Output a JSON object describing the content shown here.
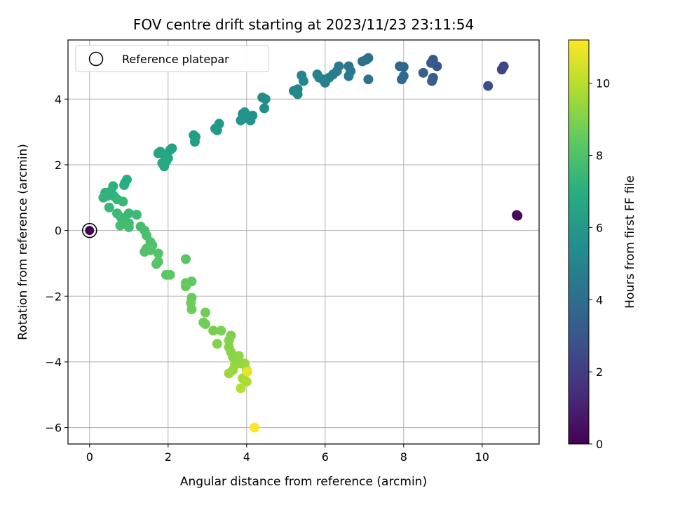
{
  "chart_data": {
    "type": "scatter",
    "title": "FOV centre drift starting at 2023/11/23 23:11:54",
    "xlabel": "Angular distance from reference (arcmin)",
    "ylabel": "Rotation from reference (arcmin)",
    "xlim": [
      -0.55,
      11.45
    ],
    "ylim": [
      -6.5,
      5.8
    ],
    "xticks": [
      0,
      2,
      4,
      6,
      8,
      10
    ],
    "yticks": [
      -6,
      -4,
      -2,
      0,
      2,
      4
    ],
    "grid": true,
    "legend": {
      "placement": "top-left",
      "entries": [
        "Reference platepar"
      ]
    },
    "reference_point": {
      "x": 0,
      "y": 0
    },
    "colorbar": {
      "label": "Hours from first FF file",
      "colormap": "viridis",
      "range": [
        0,
        11.2
      ],
      "ticks": [
        0,
        2,
        4,
        6,
        8,
        10
      ]
    },
    "points": [
      {
        "x": 10.9,
        "y": 0.45,
        "c": 0.1
      },
      {
        "x": 10.88,
        "y": 0.47,
        "c": 0.3
      },
      {
        "x": 10.5,
        "y": 4.9,
        "c": 2.2
      },
      {
        "x": 10.55,
        "y": 5.0,
        "c": 2.4
      },
      {
        "x": 10.15,
        "y": 4.4,
        "c": 2.6
      },
      {
        "x": 8.85,
        "y": 5.0,
        "c": 2.9
      },
      {
        "x": 8.75,
        "y": 5.2,
        "c": 3.0
      },
      {
        "x": 8.7,
        "y": 5.1,
        "c": 3.1
      },
      {
        "x": 8.75,
        "y": 4.65,
        "c": 3.2
      },
      {
        "x": 8.72,
        "y": 4.55,
        "c": 3.3
      },
      {
        "x": 8.5,
        "y": 4.8,
        "c": 3.4
      },
      {
        "x": 8.0,
        "y": 4.98,
        "c": 3.6
      },
      {
        "x": 7.9,
        "y": 5.0,
        "c": 3.7
      },
      {
        "x": 8.0,
        "y": 4.7,
        "c": 3.75
      },
      {
        "x": 7.95,
        "y": 4.6,
        "c": 3.8
      },
      {
        "x": 7.1,
        "y": 5.25,
        "c": 4.0
      },
      {
        "x": 7.05,
        "y": 5.2,
        "c": 4.05
      },
      {
        "x": 6.95,
        "y": 5.15,
        "c": 4.1
      },
      {
        "x": 7.1,
        "y": 4.6,
        "c": 4.2
      },
      {
        "x": 6.6,
        "y": 5.0,
        "c": 4.4
      },
      {
        "x": 6.65,
        "y": 4.85,
        "c": 4.45
      },
      {
        "x": 6.6,
        "y": 4.7,
        "c": 4.5
      },
      {
        "x": 6.35,
        "y": 5.0,
        "c": 4.6
      },
      {
        "x": 6.3,
        "y": 4.85,
        "c": 4.65
      },
      {
        "x": 6.2,
        "y": 4.75,
        "c": 4.7
      },
      {
        "x": 6.1,
        "y": 4.65,
        "c": 4.75
      },
      {
        "x": 6.0,
        "y": 4.5,
        "c": 4.8
      },
      {
        "x": 5.95,
        "y": 4.6,
        "c": 4.85
      },
      {
        "x": 5.8,
        "y": 4.75,
        "c": 4.9
      },
      {
        "x": 5.85,
        "y": 4.65,
        "c": 4.95
      },
      {
        "x": 5.4,
        "y": 4.72,
        "c": 5.0
      },
      {
        "x": 5.45,
        "y": 4.55,
        "c": 5.05
      },
      {
        "x": 5.2,
        "y": 4.25,
        "c": 5.1
      },
      {
        "x": 5.3,
        "y": 4.3,
        "c": 5.15
      },
      {
        "x": 5.3,
        "y": 4.15,
        "c": 5.2
      },
      {
        "x": 4.4,
        "y": 4.05,
        "c": 5.35
      },
      {
        "x": 4.48,
        "y": 4.0,
        "c": 5.4
      },
      {
        "x": 4.45,
        "y": 3.72,
        "c": 5.45
      },
      {
        "x": 3.9,
        "y": 3.55,
        "c": 5.55
      },
      {
        "x": 4.15,
        "y": 3.5,
        "c": 5.6
      },
      {
        "x": 3.9,
        "y": 3.4,
        "c": 5.65
      },
      {
        "x": 4.0,
        "y": 3.45,
        "c": 5.7
      },
      {
        "x": 4.1,
        "y": 3.35,
        "c": 5.75
      },
      {
        "x": 3.95,
        "y": 3.6,
        "c": 5.8
      },
      {
        "x": 3.85,
        "y": 3.35,
        "c": 5.85
      },
      {
        "x": 3.3,
        "y": 3.25,
        "c": 5.95
      },
      {
        "x": 3.2,
        "y": 3.1,
        "c": 6.0
      },
      {
        "x": 3.25,
        "y": 3.05,
        "c": 6.05
      },
      {
        "x": 2.65,
        "y": 2.9,
        "c": 6.15
      },
      {
        "x": 2.7,
        "y": 2.85,
        "c": 6.2
      },
      {
        "x": 2.68,
        "y": 2.7,
        "c": 6.25
      },
      {
        "x": 2.1,
        "y": 2.5,
        "c": 6.35
      },
      {
        "x": 2.05,
        "y": 2.45,
        "c": 6.4
      },
      {
        "x": 1.8,
        "y": 2.4,
        "c": 6.45
      },
      {
        "x": 1.75,
        "y": 2.35,
        "c": 6.5
      },
      {
        "x": 1.9,
        "y": 2.3,
        "c": 6.55
      },
      {
        "x": 2.0,
        "y": 2.2,
        "c": 6.6
      },
      {
        "x": 1.85,
        "y": 2.05,
        "c": 6.65
      },
      {
        "x": 1.9,
        "y": 1.95,
        "c": 6.7
      },
      {
        "x": 1.95,
        "y": 2.1,
        "c": 6.75
      },
      {
        "x": 0.95,
        "y": 1.55,
        "c": 6.9
      },
      {
        "x": 0.9,
        "y": 1.45,
        "c": 6.95
      },
      {
        "x": 0.88,
        "y": 1.38,
        "c": 7.0
      },
      {
        "x": 0.6,
        "y": 1.35,
        "c": 7.05
      },
      {
        "x": 0.4,
        "y": 1.15,
        "c": 7.1
      },
      {
        "x": 0.55,
        "y": 1.2,
        "c": 7.15
      },
      {
        "x": 0.62,
        "y": 1.05,
        "c": 7.2
      },
      {
        "x": 0.45,
        "y": 1.05,
        "c": 7.25
      },
      {
        "x": 0.35,
        "y": 1.0,
        "c": 7.3
      },
      {
        "x": 0.7,
        "y": 0.95,
        "c": 7.35
      },
      {
        "x": 0.85,
        "y": 0.88,
        "c": 7.4
      },
      {
        "x": 0.5,
        "y": 0.7,
        "c": 7.45
      },
      {
        "x": 1.0,
        "y": 0.52,
        "c": 7.5
      },
      {
        "x": 1.2,
        "y": 0.48,
        "c": 7.55
      },
      {
        "x": 0.7,
        "y": 0.52,
        "c": 7.58
      },
      {
        "x": 0.8,
        "y": 0.4,
        "c": 7.6
      },
      {
        "x": 0.9,
        "y": 0.3,
        "c": 7.65
      },
      {
        "x": 1.0,
        "y": 0.22,
        "c": 7.7
      },
      {
        "x": 0.78,
        "y": 0.15,
        "c": 7.72
      },
      {
        "x": 1.0,
        "y": 0.1,
        "c": 7.75
      },
      {
        "x": 1.3,
        "y": 0.12,
        "c": 7.8
      },
      {
        "x": 1.4,
        "y": 0.0,
        "c": 7.85
      },
      {
        "x": 1.45,
        "y": -0.15,
        "c": 7.9
      },
      {
        "x": 1.55,
        "y": -0.35,
        "c": 7.95
      },
      {
        "x": 1.6,
        "y": -0.45,
        "c": 8.0
      },
      {
        "x": 1.45,
        "y": -0.55,
        "c": 8.02
      },
      {
        "x": 1.4,
        "y": -0.65,
        "c": 8.05
      },
      {
        "x": 1.55,
        "y": -0.6,
        "c": 8.08
      },
      {
        "x": 1.75,
        "y": -0.7,
        "c": 8.1
      },
      {
        "x": 1.75,
        "y": -0.95,
        "c": 8.15
      },
      {
        "x": 1.7,
        "y": -1.02,
        "c": 8.2
      },
      {
        "x": 2.45,
        "y": -0.87,
        "c": 8.25
      },
      {
        "x": 1.95,
        "y": -1.35,
        "c": 8.3
      },
      {
        "x": 2.05,
        "y": -1.35,
        "c": 8.35
      },
      {
        "x": 2.6,
        "y": -1.55,
        "c": 8.4
      },
      {
        "x": 2.45,
        "y": -1.6,
        "c": 8.45
      },
      {
        "x": 2.45,
        "y": -1.7,
        "c": 8.5
      },
      {
        "x": 2.6,
        "y": -2.05,
        "c": 8.55
      },
      {
        "x": 2.58,
        "y": -2.2,
        "c": 8.6
      },
      {
        "x": 2.6,
        "y": -2.4,
        "c": 8.65
      },
      {
        "x": 2.95,
        "y": -2.5,
        "c": 8.7
      },
      {
        "x": 2.9,
        "y": -2.8,
        "c": 8.75
      },
      {
        "x": 2.95,
        "y": -2.85,
        "c": 8.8
      },
      {
        "x": 3.15,
        "y": -3.05,
        "c": 8.85
      },
      {
        "x": 3.35,
        "y": -3.05,
        "c": 8.9
      },
      {
        "x": 3.6,
        "y": -3.2,
        "c": 8.95
      },
      {
        "x": 3.25,
        "y": -3.45,
        "c": 9.0
      },
      {
        "x": 3.55,
        "y": -3.35,
        "c": 9.05
      },
      {
        "x": 3.55,
        "y": -3.55,
        "c": 9.1
      },
      {
        "x": 3.6,
        "y": -3.7,
        "c": 9.15
      },
      {
        "x": 3.65,
        "y": -3.85,
        "c": 9.2
      },
      {
        "x": 3.8,
        "y": -3.82,
        "c": 9.25
      },
      {
        "x": 3.85,
        "y": -4.05,
        "c": 9.3
      },
      {
        "x": 3.7,
        "y": -4.1,
        "c": 9.35
      },
      {
        "x": 3.95,
        "y": -4.05,
        "c": 9.4
      },
      {
        "x": 3.65,
        "y": -4.25,
        "c": 9.45
      },
      {
        "x": 3.55,
        "y": -4.35,
        "c": 9.5
      },
      {
        "x": 4.0,
        "y": -4.25,
        "c": 9.6
      },
      {
        "x": 3.9,
        "y": -4.5,
        "c": 9.7
      },
      {
        "x": 4.0,
        "y": -4.6,
        "c": 9.8
      },
      {
        "x": 3.85,
        "y": -4.8,
        "c": 9.9
      },
      {
        "x": 4.02,
        "y": -4.3,
        "c": 10.8
      },
      {
        "x": 4.2,
        "y": -6.0,
        "c": 11.2
      }
    ]
  }
}
